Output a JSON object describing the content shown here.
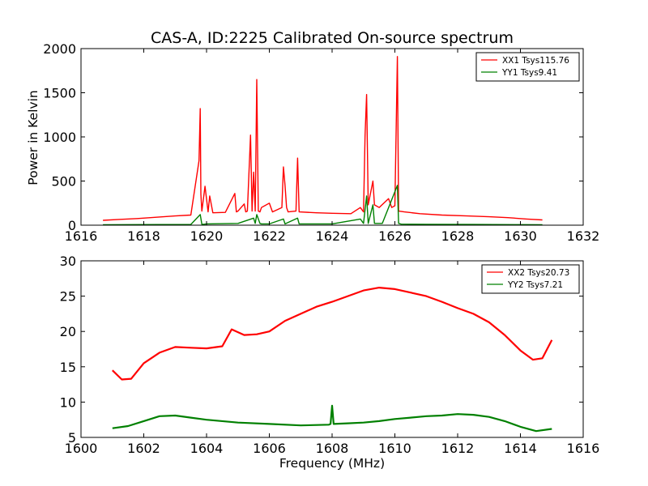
{
  "chart_data": [
    {
      "type": "line",
      "title": "CAS-A, ID:2225 Calibrated On-source spectrum",
      "xlabel": "",
      "ylabel": "Power in Kelvin",
      "xlim": [
        1616,
        1632
      ],
      "ylim": [
        0,
        2000
      ],
      "xticks": [
        "1616",
        "1618",
        "1620",
        "1622",
        "1624",
        "1626",
        "1628",
        "1630",
        "1632"
      ],
      "yticks": [
        "0",
        "500",
        "1000",
        "1500",
        "2000"
      ],
      "legend_position": "top-right",
      "series": [
        {
          "name": "XX1 Tsys115.76",
          "color": "#ff0000",
          "x": [
            1616.7,
            1617.2,
            1617.8,
            1618.4,
            1619.0,
            1619.5,
            1619.76,
            1619.8,
            1619.82,
            1619.85,
            1619.95,
            1620.05,
            1620.1,
            1620.2,
            1620.6,
            1620.9,
            1620.95,
            1621.0,
            1621.2,
            1621.25,
            1621.3,
            1621.4,
            1621.45,
            1621.5,
            1621.55,
            1621.6,
            1621.65,
            1621.7,
            1621.75,
            1622.0,
            1622.1,
            1622.4,
            1622.45,
            1622.5,
            1622.55,
            1622.6,
            1622.85,
            1622.9,
            1622.95,
            1623.5,
            1624.0,
            1624.6,
            1624.9,
            1625.0,
            1625.05,
            1625.1,
            1625.15,
            1625.3,
            1625.35,
            1625.5,
            1625.8,
            1625.9,
            1626.0,
            1626.08,
            1626.12,
            1626.3,
            1626.8,
            1627.5,
            1628.3,
            1629.0,
            1629.6,
            1630.2,
            1630.7
          ],
          "y": [
            55,
            65,
            75,
            90,
            105,
            115,
            730,
            1320,
            350,
            160,
            440,
            150,
            330,
            140,
            145,
            360,
            150,
            160,
            240,
            150,
            160,
            1020,
            160,
            600,
            160,
            1650,
            160,
            150,
            200,
            250,
            150,
            200,
            660,
            450,
            200,
            150,
            160,
            760,
            150,
            140,
            135,
            130,
            200,
            150,
            1020,
            1480,
            230,
            500,
            230,
            200,
            300,
            200,
            220,
            1910,
            160,
            150,
            130,
            115,
            105,
            95,
            85,
            70,
            60
          ]
        },
        {
          "name": "YY1 Tsys9.41",
          "color": "#008000",
          "x": [
            1616.7,
            1617.5,
            1618.5,
            1619.5,
            1619.8,
            1619.85,
            1619.9,
            1620.0,
            1621.0,
            1621.5,
            1621.55,
            1621.6,
            1621.7,
            1621.75,
            1622.0,
            1622.45,
            1622.5,
            1622.9,
            1622.95,
            1623.0,
            1624.0,
            1624.9,
            1625.0,
            1625.1,
            1625.15,
            1625.3,
            1625.35,
            1625.6,
            1626.08,
            1626.12,
            1626.2,
            1627.0,
            1628.5,
            1630.0,
            1630.7
          ],
          "y": [
            5,
            6,
            7,
            8,
            120,
            10,
            10,
            15,
            20,
            80,
            20,
            120,
            20,
            15,
            15,
            70,
            15,
            80,
            15,
            15,
            15,
            70,
            20,
            330,
            20,
            230,
            20,
            20,
            450,
            20,
            12,
            10,
            8,
            6,
            5
          ]
        }
      ]
    },
    {
      "type": "line",
      "title": "",
      "xlabel": "Frequency (MHz)",
      "ylabel": "",
      "xlim": [
        1600,
        1616
      ],
      "ylim": [
        5,
        30
      ],
      "xticks": [
        "1600",
        "1602",
        "1604",
        "1606",
        "1608",
        "1610",
        "1612",
        "1614",
        "1616"
      ],
      "yticks": [
        "5",
        "10",
        "15",
        "20",
        "25",
        "30"
      ],
      "legend_position": "top-right",
      "series": [
        {
          "name": "XX2 Tsys20.73",
          "color": "#ff0000",
          "x": [
            1601.0,
            1601.3,
            1601.6,
            1602.0,
            1602.5,
            1603.0,
            1603.5,
            1604.0,
            1604.5,
            1604.8,
            1605.2,
            1605.6,
            1606.0,
            1606.5,
            1607.0,
            1607.5,
            1608.0,
            1608.5,
            1609.0,
            1609.5,
            1610.0,
            1610.5,
            1611.0,
            1611.5,
            1612.0,
            1612.5,
            1613.0,
            1613.5,
            1614.0,
            1614.4,
            1614.7,
            1615.0
          ],
          "y": [
            14.5,
            13.2,
            13.3,
            15.5,
            17.0,
            17.8,
            17.7,
            17.6,
            17.9,
            20.3,
            19.5,
            19.6,
            20.0,
            21.5,
            22.5,
            23.5,
            24.2,
            25.0,
            25.8,
            26.2,
            26.0,
            25.5,
            25.0,
            24.2,
            23.3,
            22.5,
            21.3,
            19.5,
            17.3,
            16.0,
            16.2,
            18.8
          ]
        },
        {
          "name": "YY2 Tsys7.21",
          "color": "#008000",
          "x": [
            1601.0,
            1601.5,
            1602.0,
            1602.5,
            1603.0,
            1603.5,
            1604.0,
            1605.0,
            1606.0,
            1607.0,
            1607.9,
            1607.95,
            1608.0,
            1608.05,
            1608.5,
            1609.0,
            1609.5,
            1610.0,
            1610.5,
            1611.0,
            1611.5,
            1612.0,
            1612.5,
            1613.0,
            1613.5,
            1614.0,
            1614.5,
            1615.0
          ],
          "y": [
            6.3,
            6.6,
            7.3,
            8.0,
            8.1,
            7.8,
            7.5,
            7.1,
            6.9,
            6.7,
            6.8,
            6.9,
            9.5,
            6.9,
            7.0,
            7.1,
            7.3,
            7.6,
            7.8,
            8.0,
            8.1,
            8.3,
            8.2,
            7.9,
            7.3,
            6.5,
            5.9,
            6.2
          ]
        }
      ]
    }
  ]
}
